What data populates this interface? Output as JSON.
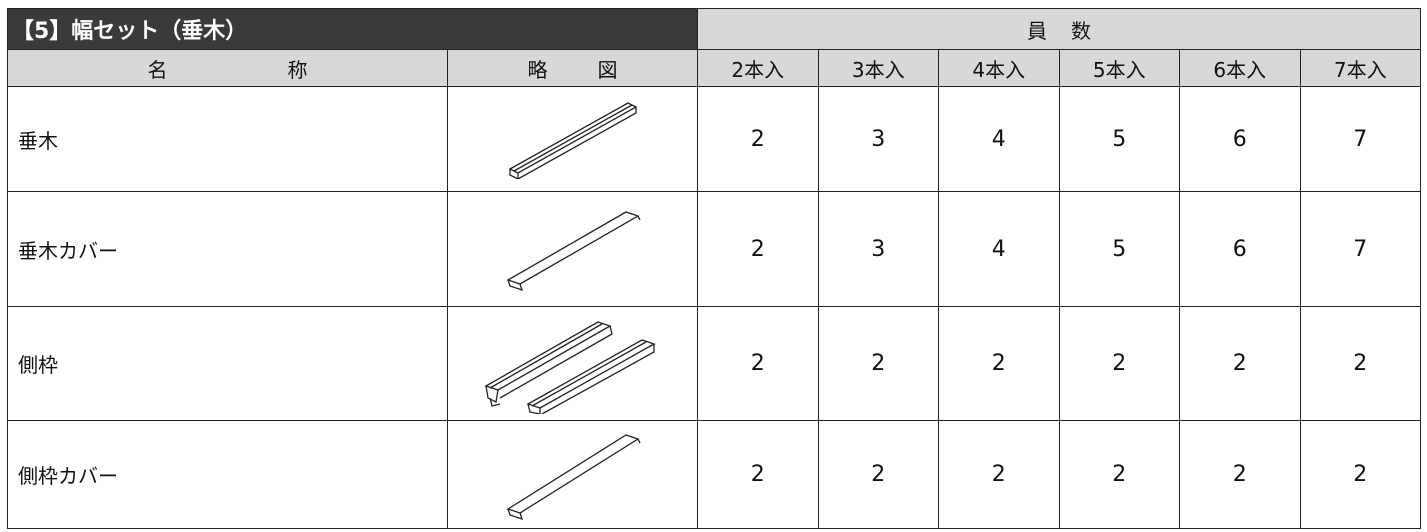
{
  "header": {
    "title": "【5】幅セット（垂木）",
    "quantity_header": "員数"
  },
  "table": {
    "columns": [
      "名称",
      "略図",
      "2本入",
      "3本入",
      "4本入",
      "5本入",
      "6本入",
      "7本入"
    ],
    "rows": [
      {
        "name": "垂木",
        "counts": [
          2,
          3,
          4,
          5,
          6,
          7
        ]
      },
      {
        "name": "垂木カバー",
        "counts": [
          2,
          3,
          4,
          5,
          6,
          7
        ]
      },
      {
        "name": "側枠",
        "counts": [
          2,
          2,
          2,
          2,
          2,
          2
        ]
      },
      {
        "name": "側枠カバー",
        "counts": [
          2,
          2,
          2,
          2,
          2,
          2
        ]
      }
    ]
  }
}
